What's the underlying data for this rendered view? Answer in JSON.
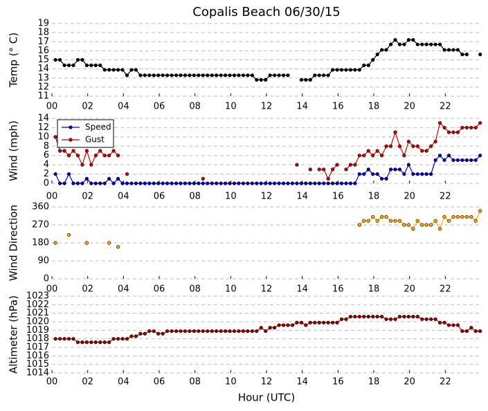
{
  "chart_data": [
    {
      "type": "line",
      "title": "Copalis Beach 06/30/15",
      "ylabel": "Temp (° C)",
      "x": [
        0.2,
        0.45,
        0.7,
        0.95,
        1.2,
        1.45,
        1.7,
        1.95,
        2.2,
        2.45,
        2.7,
        2.95,
        3.2,
        3.45,
        3.7,
        3.95,
        4.2,
        4.45,
        4.7,
        4.95,
        5.2,
        5.45,
        5.7,
        5.95,
        6.2,
        6.45,
        6.7,
        6.95,
        7.2,
        7.45,
        7.7,
        7.95,
        8.2,
        8.45,
        8.7,
        8.95,
        9.2,
        9.45,
        9.7,
        9.95,
        10.2,
        10.45,
        10.7,
        10.95,
        11.2,
        11.45,
        11.7,
        11.95,
        12.2,
        12.45,
        12.7,
        12.95,
        13.2,
        13.45,
        13.7,
        13.95,
        14.2,
        14.45,
        14.7,
        14.95,
        15.2,
        15.45,
        15.7,
        15.95,
        16.2,
        16.45,
        16.7,
        16.95,
        17.2,
        17.45,
        17.7,
        17.95,
        18.2,
        18.45,
        18.7,
        18.95,
        19.2,
        19.45,
        19.7,
        19.95,
        20.2,
        20.45,
        20.7,
        20.95,
        21.2,
        21.45,
        21.7,
        21.95,
        22.2,
        22.45,
        22.7,
        22.95,
        23.2,
        23.45,
        23.7,
        23.95
      ],
      "series": [
        {
          "name": "Temp",
          "color": "#000000",
          "marker": "#000000",
          "values": [
            15,
            15,
            14.4,
            14.4,
            14.4,
            15,
            15,
            14.4,
            14.4,
            14.4,
            14.4,
            13.9,
            13.9,
            13.9,
            13.9,
            13.9,
            13.3,
            13.9,
            13.9,
            13.3,
            13.3,
            13.3,
            13.3,
            13.3,
            13.3,
            13.3,
            13.3,
            13.3,
            13.3,
            13.3,
            13.3,
            13.3,
            13.3,
            13.3,
            13.3,
            13.3,
            13.3,
            13.3,
            13.3,
            13.3,
            13.3,
            13.3,
            13.3,
            13.3,
            13.3,
            12.8,
            12.8,
            12.8,
            13.3,
            13.3,
            13.3,
            13.3,
            13.3,
            null,
            null,
            12.8,
            12.8,
            12.8,
            13.3,
            13.3,
            13.3,
            13.3,
            13.9,
            13.9,
            13.9,
            13.9,
            13.9,
            13.9,
            13.9,
            14.4,
            14.4,
            15,
            15.6,
            16.1,
            16.1,
            16.7,
            17.2,
            16.7,
            16.7,
            17.2,
            17.2,
            16.7,
            16.7,
            16.7,
            16.7,
            16.7,
            16.7,
            16.1,
            16.1,
            16.1,
            16.1,
            15.6,
            15.6,
            null,
            null,
            15.6
          ]
        }
      ],
      "xlim": [
        0,
        24
      ],
      "xticks": [
        {
          "value": 0,
          "label": "00"
        },
        {
          "value": 2,
          "label": "02"
        },
        {
          "value": 4,
          "label": "04"
        },
        {
          "value": 6,
          "label": "06"
        },
        {
          "value": 8,
          "label": "08"
        },
        {
          "value": 10,
          "label": "10"
        },
        {
          "value": 12,
          "label": "12"
        },
        {
          "value": 14,
          "label": "14"
        },
        {
          "value": 16,
          "label": "16"
        },
        {
          "value": 18,
          "label": "18"
        },
        {
          "value": 20,
          "label": "20"
        },
        {
          "value": 22,
          "label": "22"
        }
      ],
      "ylim": [
        11,
        19
      ],
      "yticks": [
        11,
        12,
        13,
        14,
        15,
        16,
        17,
        18,
        19
      ],
      "grid": true
    },
    {
      "type": "line",
      "ylabel": "Wind (mph)",
      "legend": "upper left",
      "x": [
        0.2,
        0.45,
        0.7,
        0.95,
        1.2,
        1.45,
        1.7,
        1.95,
        2.2,
        2.45,
        2.7,
        2.95,
        3.2,
        3.45,
        3.7,
        3.95,
        4.2,
        4.45,
        4.7,
        4.95,
        5.2,
        5.45,
        5.7,
        5.95,
        6.2,
        6.45,
        6.7,
        6.95,
        7.2,
        7.45,
        7.7,
        7.95,
        8.2,
        8.45,
        8.7,
        8.95,
        9.2,
        9.45,
        9.7,
        9.95,
        10.2,
        10.45,
        10.7,
        10.95,
        11.2,
        11.45,
        11.7,
        11.95,
        12.2,
        12.45,
        12.7,
        12.95,
        13.2,
        13.45,
        13.7,
        13.95,
        14.2,
        14.45,
        14.7,
        14.95,
        15.2,
        15.45,
        15.7,
        15.95,
        16.2,
        16.45,
        16.7,
        16.95,
        17.2,
        17.45,
        17.7,
        17.95,
        18.2,
        18.45,
        18.7,
        18.95,
        19.2,
        19.45,
        19.7,
        19.95,
        20.2,
        20.45,
        20.7,
        20.95,
        21.2,
        21.45,
        21.7,
        21.95,
        22.2,
        22.45,
        22.7,
        22.95,
        23.2,
        23.45,
        23.7,
        23.95
      ],
      "series": [
        {
          "name": "Speed",
          "color": "#0000cc",
          "marker": "#0000cc",
          "values": [
            2,
            0,
            0,
            2,
            0,
            0,
            0,
            1,
            0,
            0,
            0,
            0,
            1,
            0,
            1,
            0,
            0,
            0,
            0,
            0,
            0,
            0,
            0,
            0,
            0,
            0,
            0,
            0,
            0,
            0,
            0,
            0,
            0,
            0,
            0,
            0,
            0,
            0,
            0,
            0,
            0,
            0,
            0,
            0,
            0,
            0,
            0,
            0,
            0,
            0,
            0,
            0,
            0,
            0,
            0,
            0,
            0,
            0,
            0,
            0,
            0,
            0,
            0,
            0,
            0,
            0,
            0,
            0,
            2,
            2,
            3,
            2,
            2,
            1,
            1,
            3,
            3,
            3,
            2,
            4,
            2,
            2,
            2,
            2,
            2,
            5,
            6,
            5,
            6,
            5,
            5,
            5,
            5,
            5,
            5,
            6
          ]
        },
        {
          "name": "Gust",
          "color": "#cc0000",
          "marker": "#cc0000",
          "values": [
            10,
            7,
            7,
            6,
            7,
            6,
            4,
            7,
            4,
            6,
            7,
            6,
            6,
            7,
            6,
            null,
            2,
            null,
            null,
            null,
            null,
            null,
            null,
            null,
            null,
            null,
            null,
            null,
            null,
            null,
            null,
            null,
            null,
            1,
            null,
            null,
            null,
            null,
            null,
            null,
            null,
            null,
            null,
            null,
            null,
            null,
            null,
            null,
            null,
            null,
            null,
            null,
            null,
            null,
            4,
            null,
            null,
            3,
            null,
            3,
            3,
            1,
            3,
            4,
            null,
            3,
            4,
            4,
            6,
            6,
            7,
            6,
            7,
            6,
            8,
            8,
            11,
            8,
            6,
            9,
            8,
            8,
            7,
            7,
            8,
            9,
            13,
            12,
            11,
            11,
            11,
            12,
            12,
            12,
            12,
            13
          ]
        }
      ],
      "xlim": [
        0,
        24
      ],
      "xticks": [
        {
          "value": 0,
          "label": "00"
        },
        {
          "value": 2,
          "label": "02"
        },
        {
          "value": 4,
          "label": "04"
        },
        {
          "value": 6,
          "label": "06"
        },
        {
          "value": 8,
          "label": "08"
        },
        {
          "value": 10,
          "label": "10"
        },
        {
          "value": 12,
          "label": "12"
        },
        {
          "value": 14,
          "label": "14"
        },
        {
          "value": 16,
          "label": "16"
        },
        {
          "value": 18,
          "label": "18"
        },
        {
          "value": 20,
          "label": "20"
        },
        {
          "value": 22,
          "label": "22"
        }
      ],
      "ylim": [
        0,
        14
      ],
      "yticks": [
        0,
        2,
        4,
        6,
        8,
        10,
        12,
        14
      ],
      "grid": true
    },
    {
      "type": "line",
      "ylabel": "Wind Direction",
      "x": [
        0.2,
        0.45,
        0.7,
        0.95,
        1.2,
        1.45,
        1.7,
        1.95,
        2.2,
        2.45,
        2.7,
        2.95,
        3.2,
        3.45,
        3.7,
        3.95,
        4.2,
        4.45,
        4.7,
        4.95,
        5.2,
        5.45,
        5.7,
        5.95,
        6.2,
        6.45,
        6.7,
        6.95,
        7.2,
        7.45,
        7.7,
        7.95,
        8.2,
        8.45,
        8.7,
        8.95,
        9.2,
        9.45,
        9.7,
        9.95,
        10.2,
        10.45,
        10.7,
        10.95,
        11.2,
        11.45,
        11.7,
        11.95,
        12.2,
        12.45,
        12.7,
        12.95,
        13.2,
        13.45,
        13.7,
        13.95,
        14.2,
        14.45,
        14.7,
        14.95,
        15.2,
        15.45,
        15.7,
        15.95,
        16.2,
        16.45,
        16.7,
        16.95,
        17.2,
        17.45,
        17.7,
        17.95,
        18.2,
        18.45,
        18.7,
        18.95,
        19.2,
        19.45,
        19.7,
        19.95,
        20.2,
        20.45,
        20.7,
        20.95,
        21.2,
        21.45,
        21.7,
        21.95,
        22.2,
        22.45,
        22.7,
        22.95,
        23.2,
        23.45,
        23.7,
        23.95
      ],
      "series": [
        {
          "name": "Direction",
          "color": "#ffa500",
          "marker": "#ffa500",
          "values": [
            180,
            null,
            null,
            220,
            null,
            null,
            null,
            180,
            null,
            null,
            null,
            null,
            180,
            null,
            160,
            null,
            null,
            null,
            null,
            null,
            null,
            null,
            null,
            null,
            null,
            null,
            null,
            null,
            null,
            null,
            null,
            null,
            null,
            null,
            null,
            null,
            null,
            null,
            null,
            null,
            null,
            null,
            null,
            null,
            null,
            null,
            null,
            null,
            null,
            null,
            null,
            null,
            null,
            null,
            null,
            null,
            null,
            null,
            null,
            null,
            null,
            null,
            null,
            null,
            null,
            null,
            null,
            null,
            270,
            290,
            290,
            310,
            290,
            310,
            310,
            290,
            290,
            290,
            270,
            270,
            250,
            290,
            270,
            270,
            270,
            290,
            250,
            310,
            290,
            310,
            310,
            310,
            310,
            310,
            290,
            340
          ]
        }
      ],
      "xlim": [
        0,
        24
      ],
      "xticks": [
        {
          "value": 0,
          "label": "00"
        },
        {
          "value": 2,
          "label": "02"
        },
        {
          "value": 4,
          "label": "04"
        },
        {
          "value": 6,
          "label": "06"
        },
        {
          "value": 8,
          "label": "08"
        },
        {
          "value": 10,
          "label": "10"
        },
        {
          "value": 12,
          "label": "12"
        },
        {
          "value": 14,
          "label": "14"
        },
        {
          "value": 16,
          "label": "16"
        },
        {
          "value": 18,
          "label": "18"
        },
        {
          "value": 20,
          "label": "20"
        },
        {
          "value": 22,
          "label": "22"
        }
      ],
      "ylim": [
        0,
        360
      ],
      "yticks": [
        0,
        90,
        180,
        270,
        360
      ],
      "grid": true
    },
    {
      "type": "line",
      "ylabel": "Altimeter (hPa)",
      "xlabel": "Hour (UTC)",
      "x": [
        0.2,
        0.45,
        0.7,
        0.95,
        1.2,
        1.45,
        1.7,
        1.95,
        2.2,
        2.45,
        2.7,
        2.95,
        3.2,
        3.45,
        3.7,
        3.95,
        4.2,
        4.45,
        4.7,
        4.95,
        5.2,
        5.45,
        5.7,
        5.95,
        6.2,
        6.45,
        6.7,
        6.95,
        7.2,
        7.45,
        7.7,
        7.95,
        8.2,
        8.45,
        8.7,
        8.95,
        9.2,
        9.45,
        9.7,
        9.95,
        10.2,
        10.45,
        10.7,
        10.95,
        11.2,
        11.45,
        11.7,
        11.95,
        12.2,
        12.45,
        12.7,
        12.95,
        13.2,
        13.45,
        13.7,
        13.95,
        14.2,
        14.45,
        14.7,
        14.95,
        15.2,
        15.45,
        15.7,
        15.95,
        16.2,
        16.45,
        16.7,
        16.95,
        17.2,
        17.45,
        17.7,
        17.95,
        18.2,
        18.45,
        18.7,
        18.95,
        19.2,
        19.45,
        19.7,
        19.95,
        20.2,
        20.45,
        20.7,
        20.95,
        21.2,
        21.45,
        21.7,
        21.95,
        22.2,
        22.45,
        22.7,
        22.95,
        23.2,
        23.45,
        23.7,
        23.95
      ],
      "series": [
        {
          "name": "Altimeter",
          "color": "#cc0000",
          "marker": "#990000",
          "values": [
            1018,
            1018,
            1018,
            1018,
            1018,
            1017.6,
            1017.6,
            1017.6,
            1017.6,
            1017.6,
            1017.6,
            1017.6,
            1017.6,
            1018,
            1018,
            1018,
            1018,
            1018.3,
            1018.3,
            1018.6,
            1018.6,
            1018.9,
            1018.9,
            1018.6,
            1018.6,
            1018.9,
            1018.9,
            1018.9,
            1018.9,
            1018.9,
            1018.9,
            1018.9,
            1018.9,
            1018.9,
            1018.9,
            1018.9,
            1018.9,
            1018.9,
            1018.9,
            1018.9,
            1018.9,
            1018.9,
            1018.9,
            1018.9,
            1018.9,
            1018.9,
            1019.3,
            1018.9,
            1019.3,
            1019.3,
            1019.6,
            1019.6,
            1019.6,
            1019.6,
            1019.9,
            1019.9,
            1019.6,
            1019.9,
            1019.9,
            1019.9,
            1019.9,
            1019.9,
            1019.9,
            1019.9,
            1020.3,
            1020.3,
            1020.6,
            1020.6,
            1020.6,
            1020.6,
            1020.6,
            1020.6,
            1020.6,
            1020.6,
            1020.3,
            1020.3,
            1020.3,
            1020.6,
            1020.6,
            1020.6,
            1020.6,
            1020.6,
            1020.3,
            1020.3,
            1020.3,
            1020.3,
            1019.9,
            1019.9,
            1019.6,
            1019.6,
            1019.6,
            1018.9,
            1018.9,
            1019.3,
            1018.9,
            1018.9
          ]
        }
      ],
      "xlim": [
        0,
        24
      ],
      "xticks": [
        {
          "value": 0,
          "label": "00"
        },
        {
          "value": 2,
          "label": "02"
        },
        {
          "value": 4,
          "label": "04"
        },
        {
          "value": 6,
          "label": "06"
        },
        {
          "value": 8,
          "label": "08"
        },
        {
          "value": 10,
          "label": "10"
        },
        {
          "value": 12,
          "label": "12"
        },
        {
          "value": 14,
          "label": "14"
        },
        {
          "value": 16,
          "label": "16"
        },
        {
          "value": 18,
          "label": "18"
        },
        {
          "value": 20,
          "label": "20"
        },
        {
          "value": 22,
          "label": "22"
        }
      ],
      "ylim": [
        1014,
        1023
      ],
      "yticks": [
        1014,
        1015,
        1016,
        1017,
        1018,
        1019,
        1020,
        1021,
        1022,
        1023
      ],
      "grid": true
    }
  ]
}
